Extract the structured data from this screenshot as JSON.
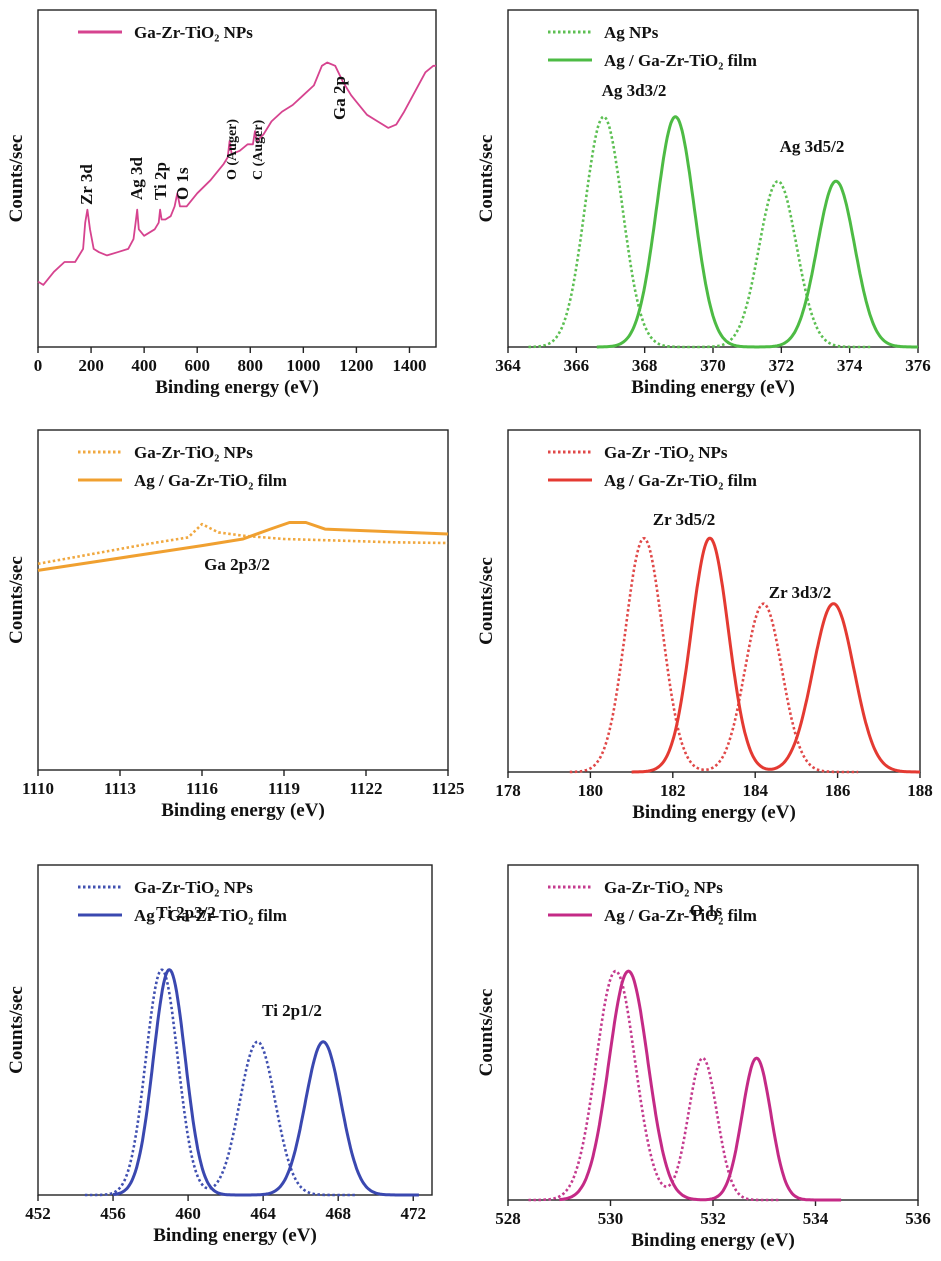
{
  "chart_data": [
    {
      "type": "line",
      "panel": "survey",
      "xlabel": "Binding energy (eV)",
      "ylabel": "Counts/sec",
      "xlim": [
        0,
        1500
      ],
      "ylim": [
        0,
        10
      ],
      "xticks": [
        0,
        200,
        400,
        600,
        800,
        1000,
        1200,
        1400
      ],
      "grid": false,
      "legend_position": "top-left",
      "series": [
        {
          "name": "Ga-Zr-TiO₂ NPs",
          "color": "#d6438f",
          "style": "solid",
          "points": [
            [
              0,
              2.0
            ],
            [
              20,
              1.9
            ],
            [
              60,
              2.3
            ],
            [
              100,
              2.6
            ],
            [
              140,
              2.6
            ],
            [
              170,
              3.0
            ],
            [
              178,
              3.8
            ],
            [
              186,
              4.2
            ],
            [
              196,
              3.6
            ],
            [
              210,
              3.0
            ],
            [
              230,
              2.9
            ],
            [
              260,
              2.8
            ],
            [
              300,
              2.9
            ],
            [
              340,
              3.0
            ],
            [
              360,
              3.3
            ],
            [
              368,
              3.8
            ],
            [
              374,
              4.2
            ],
            [
              380,
              3.6
            ],
            [
              400,
              3.4
            ],
            [
              440,
              3.6
            ],
            [
              455,
              3.8
            ],
            [
              460,
              4.2
            ],
            [
              466,
              3.9
            ],
            [
              480,
              3.9
            ],
            [
              500,
              4.0
            ],
            [
              515,
              4.3
            ],
            [
              525,
              4.7
            ],
            [
              535,
              4.3
            ],
            [
              560,
              4.3
            ],
            [
              600,
              4.7
            ],
            [
              650,
              5.1
            ],
            [
              700,
              5.6
            ],
            [
              715,
              5.8
            ],
            [
              722,
              6.3
            ],
            [
              730,
              5.9
            ],
            [
              760,
              6.0
            ],
            [
              790,
              6.2
            ],
            [
              810,
              6.2
            ],
            [
              818,
              6.6
            ],
            [
              825,
              6.3
            ],
            [
              850,
              6.5
            ],
            [
              880,
              6.9
            ],
            [
              920,
              7.2
            ],
            [
              960,
              7.4
            ],
            [
              1000,
              7.7
            ],
            [
              1040,
              8.0
            ],
            [
              1070,
              8.6
            ],
            [
              1090,
              8.7
            ],
            [
              1120,
              8.6
            ],
            [
              1150,
              8.1
            ],
            [
              1180,
              7.7
            ],
            [
              1200,
              7.5
            ],
            [
              1240,
              7.1
            ],
            [
              1280,
              6.9
            ],
            [
              1320,
              6.7
            ],
            [
              1350,
              6.8
            ],
            [
              1380,
              7.2
            ],
            [
              1420,
              7.8
            ],
            [
              1460,
              8.4
            ],
            [
              1490,
              8.6
            ],
            [
              1500,
              8.6
            ]
          ]
        }
      ],
      "annotations": [
        {
          "text": "Zr 3d",
          "x": 180,
          "rotated": true
        },
        {
          "text": "Ag 3d",
          "x": 368,
          "rotated": true
        },
        {
          "text": "Ti 2p",
          "x": 458,
          "rotated": true
        },
        {
          "text": "O 1s",
          "x": 530,
          "rotated": true
        },
        {
          "text": "O (Auger)",
          "x": 720,
          "rotated": true
        },
        {
          "text": "C (Auger)",
          "x": 815,
          "rotated": true
        },
        {
          "text": "Ga 2p",
          "x": 1120,
          "rotated": true
        }
      ]
    },
    {
      "type": "line",
      "panel": "Ag 3d",
      "xlabel": "Binding energy (eV)",
      "ylabel": "Counts/sec",
      "xlim": [
        364,
        376
      ],
      "ylim": [
        0,
        1
      ],
      "xticks": [
        364,
        366,
        368,
        370,
        372,
        374,
        376
      ],
      "grid": false,
      "legend_position": "top-left",
      "series": [
        {
          "name": "Ag NPs",
          "color": "#5cbf52",
          "style": "dotted",
          "peaks": [
            [
              366.8,
              1.0,
              0.55
            ],
            [
              371.9,
              0.72,
              0.55
            ]
          ],
          "range": [
            364.6,
            374.6
          ]
        },
        {
          "name": "Ag / Ga-Zr-TiO₂ film",
          "color": "#4dbb44",
          "style": "solid",
          "peaks": [
            [
              368.9,
              1.0,
              0.55
            ],
            [
              373.6,
              0.72,
              0.55
            ]
          ],
          "range": [
            366.6,
            376
          ]
        }
      ],
      "annotations": [
        {
          "text": "Ag 3d3/2",
          "x": 366.8,
          "y": 1.04
        },
        {
          "text": "Ag 3d5/2",
          "x": 373.0,
          "y": 0.78
        }
      ]
    },
    {
      "type": "line",
      "panel": "Ga 2p",
      "xlabel": "Binding energy (eV)",
      "ylabel": "Counts/sec",
      "xlim": [
        1110,
        1125
      ],
      "ylim": [
        0,
        10
      ],
      "xticks": [
        1110,
        1113,
        1116,
        1119,
        1122,
        1125
      ],
      "grid": false,
      "legend_position": "top-left",
      "series": [
        {
          "name": "Ga-Zr-TiO₂ NPs",
          "color": "#f0a840",
          "style": "dotted",
          "points": [
            [
              1110,
              6.25
            ],
            [
              1112,
              6.55
            ],
            [
              1114,
              6.85
            ],
            [
              1115.5,
              7.05
            ],
            [
              1116,
              7.45
            ],
            [
              1116.6,
              7.2
            ],
            [
              1117.5,
              7.1
            ],
            [
              1119,
              7.0
            ],
            [
              1121,
              6.95
            ],
            [
              1123,
              6.9
            ],
            [
              1125,
              6.88
            ]
          ]
        },
        {
          "name": "Ag / Ga-Zr-TiO₂ film",
          "color": "#f0a030",
          "style": "solid",
          "points": [
            [
              1110,
              6.05
            ],
            [
              1112,
              6.3
            ],
            [
              1114,
              6.55
            ],
            [
              1116,
              6.8
            ],
            [
              1117.5,
              7.0
            ],
            [
              1118.5,
              7.3
            ],
            [
              1119.2,
              7.5
            ],
            [
              1119.8,
              7.5
            ],
            [
              1120.5,
              7.3
            ],
            [
              1122,
              7.25
            ],
            [
              1123.5,
              7.2
            ],
            [
              1125,
              7.15
            ]
          ]
        }
      ],
      "annotations": [
        {
          "text": "Ga 2p3/2",
          "x": 1117,
          "y": 8.1
        }
      ]
    },
    {
      "type": "line",
      "panel": "Zr 3d",
      "xlabel": "Binding energy (eV)",
      "ylabel": "Counts/sec",
      "xlim": [
        178,
        188
      ],
      "ylim": [
        0,
        1
      ],
      "xticks": [
        178,
        180,
        182,
        184,
        186,
        188
      ],
      "grid": false,
      "legend_position": "top-left",
      "series": [
        {
          "name": "Ga-Zr -TiO₂ NPs",
          "color": "#e04848",
          "style": "dotted",
          "peaks": [
            [
              181.3,
              1.0,
              0.45
            ],
            [
              184.2,
              0.72,
              0.45
            ]
          ],
          "range": [
            179.5,
            186.5
          ]
        },
        {
          "name": "Ag / Ga-Zr-TiO₂ film",
          "color": "#e43a32",
          "style": "solid",
          "peaks": [
            [
              182.9,
              1.0,
              0.45
            ],
            [
              185.9,
              0.72,
              0.5
            ]
          ],
          "range": [
            181.0,
            188
          ]
        }
      ],
      "annotations": [
        {
          "text": "Zr 3d5/2",
          "x": 182.1,
          "y": 1.05
        },
        {
          "text": "Zr 3d3/2",
          "x": 185.1,
          "y": 0.78
        }
      ]
    },
    {
      "type": "line",
      "panel": "Ti 2p",
      "xlabel": "Binding energy (eV)",
      "ylabel": "Counts/sec",
      "xlim": [
        452,
        473
      ],
      "ylim": [
        0,
        1
      ],
      "xticks": [
        452,
        456,
        460,
        464,
        468,
        472
      ],
      "grid": false,
      "legend_position": "top-left",
      "series": [
        {
          "name": "Ga-Zr-TiO₂ NPs",
          "color": "#4050b0",
          "style": "dotted",
          "peaks": [
            [
              458.6,
              1.0,
              0.85
            ],
            [
              463.7,
              0.68,
              0.95
            ]
          ],
          "range": [
            454.5,
            469
          ]
        },
        {
          "name": "Ag / Ga-Zr-TiO₂ film",
          "color": "#3a48b0",
          "style": "solid",
          "peaks": [
            [
              459.0,
              1.0,
              0.85
            ],
            [
              467.2,
              0.68,
              0.95
            ]
          ],
          "range": [
            456,
            472.3
          ]
        }
      ],
      "annotations": [
        {
          "text": "Ti 2p3/2",
          "x": 458.6,
          "y": 1.06
        },
        {
          "text": "Ti 2p1/2",
          "x": 465.5,
          "y": 0.76
        }
      ]
    },
    {
      "type": "line",
      "panel": "O 1s",
      "xlabel": "Binding energy (eV)",
      "ylabel": "Counts/sec",
      "xlim": [
        528,
        536
      ],
      "ylim": [
        0,
        1
      ],
      "xticks": [
        528,
        530,
        532,
        534,
        536
      ],
      "grid": false,
      "legend_position": "top-left",
      "series": [
        {
          "name": "Ga-Zr-TiO₂ NPs",
          "color": "#c43a8e",
          "style": "dotted",
          "peaks": [
            [
              530.1,
              1.0,
              0.38
            ],
            [
              531.8,
              0.62,
              0.28
            ]
          ],
          "range": [
            528.4,
            533.3
          ]
        },
        {
          "name": "Ag / Ga-Zr-TiO₂ film",
          "color": "#c42a86",
          "style": "solid",
          "peaks": [
            [
              530.35,
              1.0,
              0.38
            ],
            [
              532.85,
              0.62,
              0.28
            ]
          ],
          "range": [
            529.0,
            534.5
          ]
        }
      ],
      "annotations": [
        {
          "text": "O 1s",
          "x": 531.0,
          "y": 1.1
        }
      ]
    }
  ]
}
